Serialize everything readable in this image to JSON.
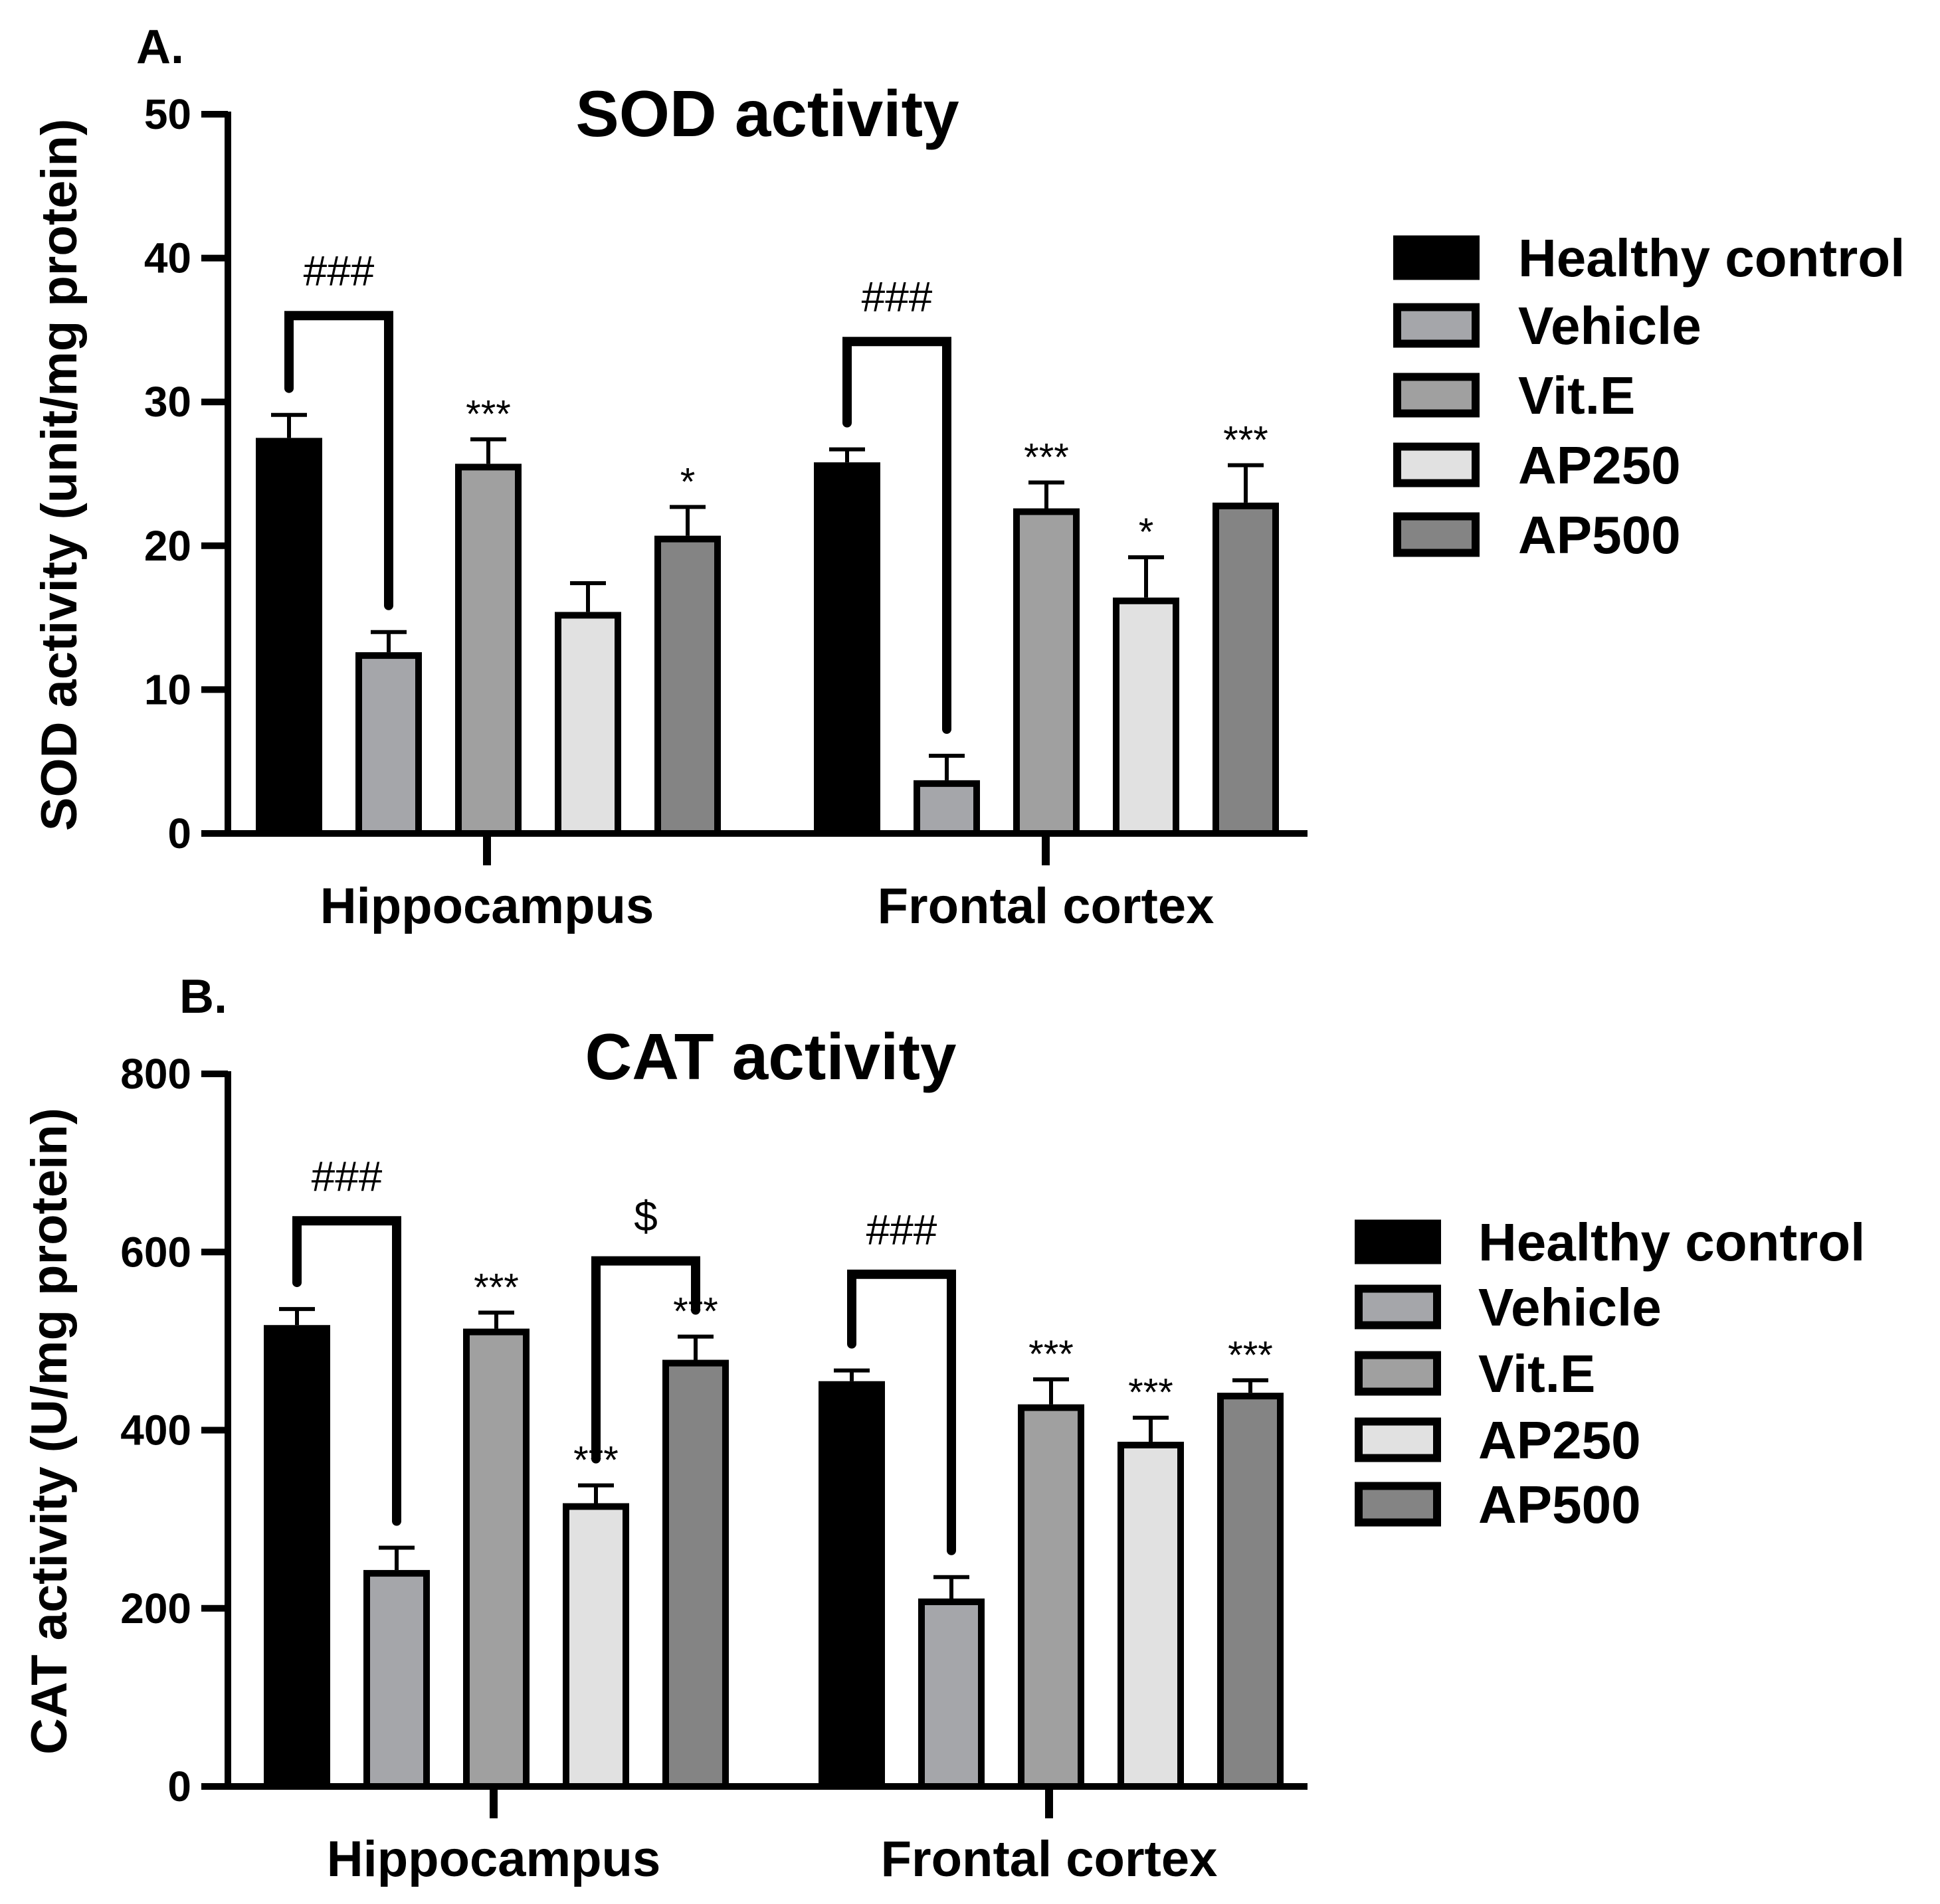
{
  "chart_data": [
    {
      "type": "bar",
      "panel_label": "A.",
      "title": "SOD activity",
      "ylabel": "SOD activity (unit/mg protein)",
      "ylim": [
        0,
        50
      ],
      "yticks": [
        0,
        10,
        20,
        30,
        40,
        50
      ],
      "categories": [
        "Hippocampus",
        "Frontal cortex"
      ],
      "series": [
        {
          "name": "Healthy control",
          "color": "#000000",
          "values": [
            27.5,
            25.8
          ],
          "errors": [
            1.6,
            0.9
          ],
          "marks": [
            "",
            ""
          ]
        },
        {
          "name": "Vehicle",
          "color": "#a5a6aa",
          "values": [
            12.6,
            3.7
          ],
          "errors": [
            1.4,
            1.7
          ],
          "marks": [
            "",
            ""
          ]
        },
        {
          "name": "Vit.E",
          "color": "#a0a0a0",
          "values": [
            25.7,
            22.6
          ],
          "errors": [
            1.7,
            1.8
          ],
          "marks": [
            "***",
            "***"
          ]
        },
        {
          "name": "AP250",
          "color": "#e1e1e1",
          "values": [
            15.4,
            16.4
          ],
          "errors": [
            2.0,
            2.8
          ],
          "marks": [
            "",
            "*"
          ]
        },
        {
          "name": "AP500",
          "color": "#848484",
          "values": [
            20.7,
            23.0
          ],
          "errors": [
            2.0,
            2.6
          ],
          "marks": [
            "*",
            "***"
          ]
        }
      ],
      "brackets": [
        {
          "label": "###",
          "category": 0,
          "from": 0,
          "to": 1,
          "top": 36.0
        },
        {
          "label": "###",
          "category": 1,
          "from": 0,
          "to": 1,
          "top": 34.2
        }
      ],
      "legend_position": "right"
    },
    {
      "type": "bar",
      "panel_label": "B.",
      "title": "CAT activity",
      "ylabel": "CAT activity (U/mg protein)",
      "ylim": [
        0,
        800
      ],
      "yticks": [
        0,
        200,
        400,
        600,
        800
      ],
      "categories": [
        "Hippocampus",
        "Frontal cortex"
      ],
      "series": [
        {
          "name": "Healthy control",
          "color": "#000000",
          "values": [
            518,
            455
          ],
          "errors": [
            18,
            12
          ],
          "marks": [
            "",
            ""
          ]
        },
        {
          "name": "Vehicle",
          "color": "#a5a6aa",
          "values": [
            243,
            211
          ],
          "errors": [
            25,
            24
          ],
          "marks": [
            "",
            ""
          ]
        },
        {
          "name": "Vit.E",
          "color": "#a0a0a0",
          "values": [
            514,
            429
          ],
          "errors": [
            18,
            28
          ],
          "marks": [
            "***",
            "***"
          ]
        },
        {
          "name": "AP250",
          "color": "#e1e1e1",
          "values": [
            318,
            387
          ],
          "errors": [
            20,
            27
          ],
          "marks": [
            "***",
            "***"
          ]
        },
        {
          "name": "AP500",
          "color": "#848484",
          "values": [
            479,
            442
          ],
          "errors": [
            26,
            14
          ],
          "marks": [
            "***",
            "***"
          ]
        }
      ],
      "brackets": [
        {
          "label": "###",
          "category": 0,
          "from": 0,
          "to": 1,
          "top": 635
        },
        {
          "label": "$",
          "category": 0,
          "from": 3,
          "to": 4,
          "top": 590
        },
        {
          "label": "###",
          "category": 1,
          "from": 0,
          "to": 1,
          "top": 575
        }
      ],
      "legend_position": "right"
    }
  ]
}
